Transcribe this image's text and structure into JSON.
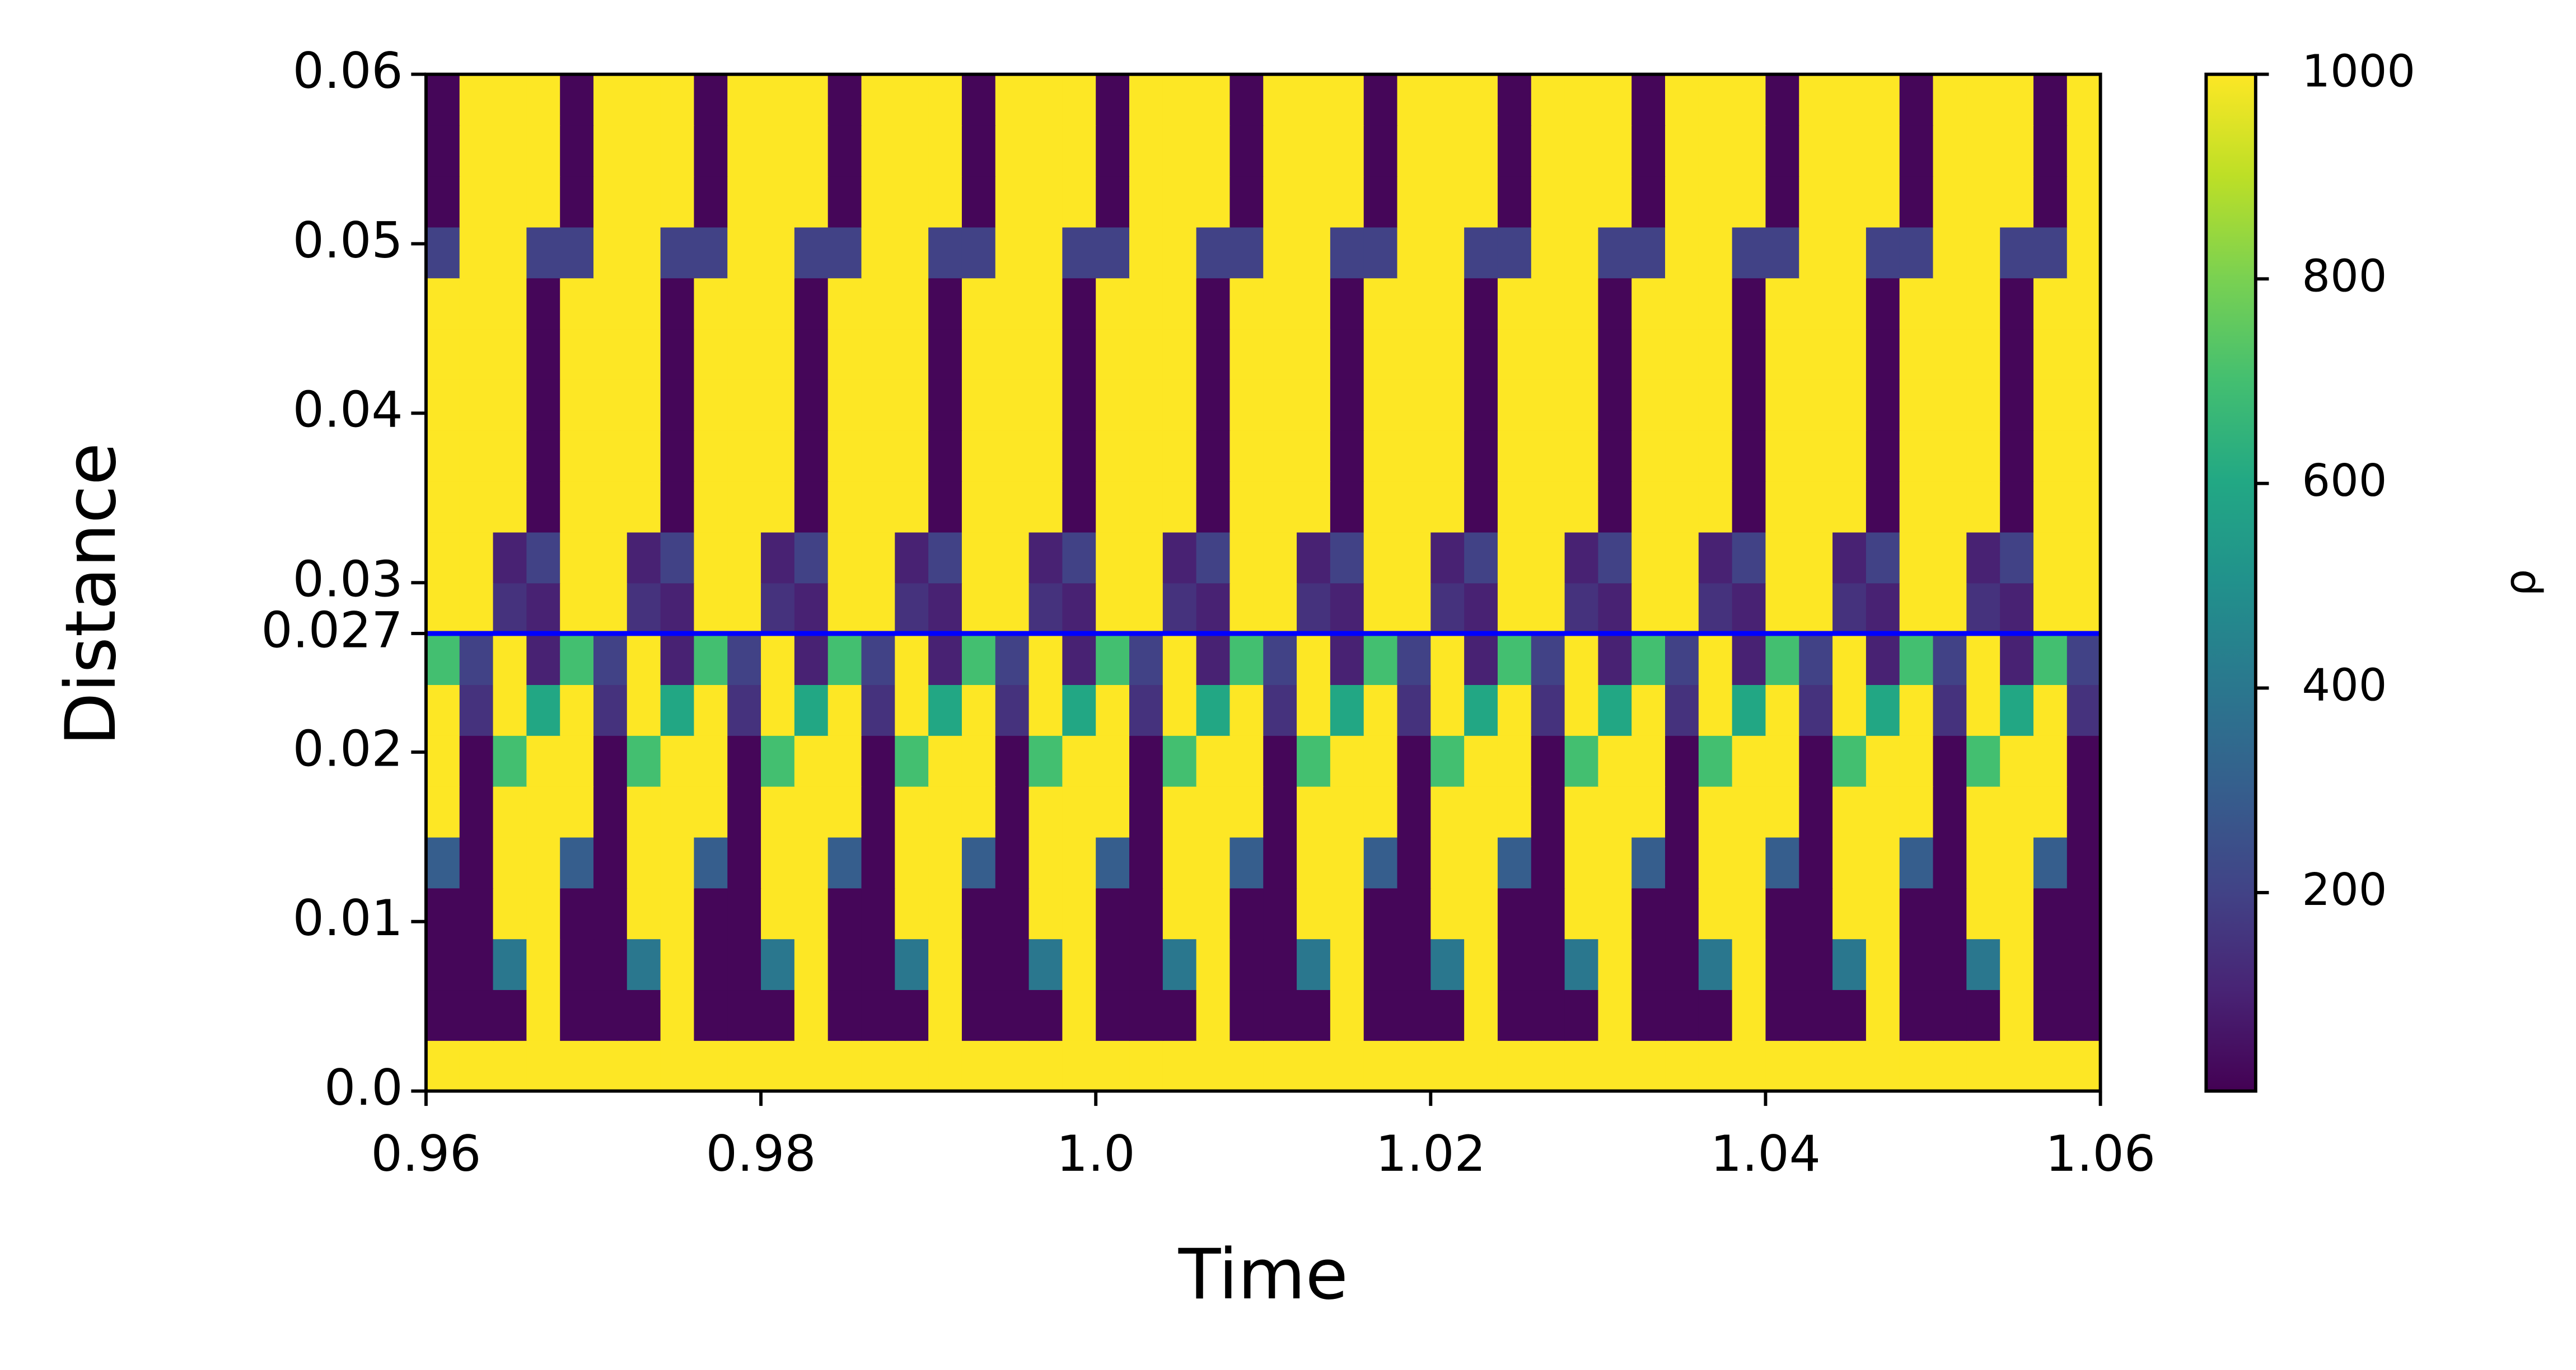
{
  "chart_data": {
    "type": "heatmap",
    "xlabel": "Time",
    "ylabel": "Distance",
    "xlim": [
      0.96,
      1.06
    ],
    "ylim": [
      0,
      0.06
    ],
    "xticks": [
      0.96,
      0.98,
      {
        "value": 1.0,
        "label": "1.0"
      },
      1.02,
      1.04,
      1.06
    ],
    "yticks": [
      {
        "value": 0,
        "label": "0.0"
      },
      0.01,
      0.02,
      0.027,
      0.03,
      0.04,
      0.05,
      0.06
    ],
    "hline": {
      "value": 0.027,
      "color": "#0000ff"
    },
    "colormap": "viridis",
    "colorbar": {
      "label": "ρ",
      "clim": [
        6,
        1000
      ],
      "ticks": [
        200,
        400,
        600,
        800,
        1000
      ]
    },
    "z": [
      [
        1000,
        1000,
        1000,
        1000,
        1000,
        1000,
        1000,
        1000,
        1000,
        1000,
        1000,
        1000,
        1000,
        1000,
        1000,
        1000,
        1000,
        1000,
        1000,
        1000,
        1000,
        1000,
        1000,
        1000,
        1000,
        1000,
        1000,
        1000,
        1000,
        1000,
        1000,
        1000,
        1000,
        1000,
        1000,
        1000,
        1000,
        1000,
        1000,
        1000,
        1000,
        1000,
        1000,
        1000,
        1000,
        1000,
        1000,
        1000,
        1000,
        1000
      ],
      [
        20,
        20,
        20,
        1000,
        20,
        20,
        20,
        1000,
        20,
        20,
        20,
        1000,
        20,
        20,
        20,
        1000,
        20,
        20,
        20,
        1000,
        20,
        20,
        20,
        1000,
        20,
        20,
        20,
        1000,
        20,
        20,
        20,
        1000,
        20,
        20,
        20,
        1000,
        20,
        20,
        20,
        1000,
        20,
        20,
        20,
        1000,
        20,
        20,
        20,
        1000,
        20,
        20
      ],
      [
        20,
        20,
        400,
        1000,
        20,
        20,
        400,
        1000,
        20,
        20,
        400,
        1000,
        20,
        20,
        400,
        1000,
        20,
        20,
        400,
        1000,
        20,
        20,
        400,
        1000,
        20,
        20,
        400,
        1000,
        20,
        20,
        400,
        1000,
        20,
        20,
        400,
        1000,
        20,
        20,
        400,
        1000,
        20,
        20,
        400,
        1000,
        20,
        20,
        400,
        1000,
        20,
        20
      ],
      [
        20,
        20,
        1000,
        1000,
        20,
        20,
        1000,
        1000,
        20,
        20,
        1000,
        1000,
        20,
        20,
        1000,
        1000,
        20,
        20,
        1000,
        1000,
        20,
        20,
        1000,
        1000,
        20,
        20,
        1000,
        1000,
        20,
        20,
        1000,
        1000,
        20,
        20,
        1000,
        1000,
        20,
        20,
        1000,
        1000,
        20,
        20,
        1000,
        1000,
        20,
        20,
        1000,
        1000,
        20,
        20
      ],
      [
        300,
        20,
        1000,
        1000,
        300,
        20,
        1000,
        1000,
        300,
        20,
        1000,
        1000,
        300,
        20,
        1000,
        1000,
        300,
        20,
        1000,
        1000,
        300,
        20,
        1000,
        1000,
        300,
        20,
        1000,
        1000,
        300,
        20,
        1000,
        1000,
        300,
        20,
        1000,
        1000,
        300,
        20,
        1000,
        1000,
        300,
        20,
        1000,
        1000,
        300,
        20,
        1000,
        1000,
        300,
        20
      ],
      [
        1000,
        20,
        1000,
        1000,
        1000,
        20,
        1000,
        1000,
        1000,
        20,
        1000,
        1000,
        1000,
        20,
        1000,
        1000,
        1000,
        20,
        1000,
        1000,
        1000,
        20,
        1000,
        1000,
        1000,
        20,
        1000,
        1000,
        1000,
        20,
        1000,
        1000,
        1000,
        20,
        1000,
        1000,
        1000,
        20,
        1000,
        1000,
        1000,
        20,
        1000,
        1000,
        1000,
        20,
        1000,
        1000,
        1000,
        20
      ],
      [
        1000,
        20,
        700,
        1000,
        1000,
        20,
        700,
        1000,
        1000,
        20,
        700,
        1000,
        1000,
        20,
        700,
        1000,
        1000,
        20,
        700,
        1000,
        1000,
        20,
        700,
        1000,
        1000,
        20,
        700,
        1000,
        1000,
        20,
        700,
        1000,
        1000,
        20,
        700,
        1000,
        1000,
        20,
        700,
        1000,
        1000,
        20,
        700,
        1000,
        1000,
        20,
        700,
        1000,
        1000,
        20
      ],
      [
        1000,
        150,
        1000,
        600,
        1000,
        150,
        1000,
        600,
        1000,
        150,
        1000,
        600,
        1000,
        150,
        1000,
        600,
        1000,
        150,
        1000,
        600,
        1000,
        150,
        1000,
        600,
        1000,
        150,
        1000,
        600,
        1000,
        150,
        1000,
        600,
        1000,
        150,
        1000,
        600,
        1000,
        150,
        1000,
        600,
        1000,
        150,
        1000,
        600,
        1000,
        150,
        1000,
        600,
        1000,
        150
      ],
      [
        700,
        200,
        1000,
        100,
        700,
        200,
        1000,
        100,
        700,
        200,
        1000,
        100,
        700,
        200,
        1000,
        100,
        700,
        200,
        1000,
        100,
        700,
        200,
        1000,
        100,
        700,
        200,
        1000,
        100,
        700,
        200,
        1000,
        100,
        700,
        200,
        1000,
        100,
        700,
        200,
        1000,
        100,
        700,
        200,
        1000,
        100,
        700,
        200,
        1000,
        100,
        700,
        200
      ],
      [
        1000,
        1000,
        150,
        100,
        1000,
        1000,
        150,
        100,
        1000,
        1000,
        150,
        100,
        1000,
        1000,
        150,
        100,
        1000,
        1000,
        150,
        100,
        1000,
        1000,
        150,
        100,
        1000,
        1000,
        150,
        100,
        1000,
        1000,
        150,
        100,
        1000,
        1000,
        150,
        100,
        1000,
        1000,
        150,
        100,
        1000,
        1000,
        150,
        100,
        1000,
        1000,
        150,
        100,
        1000,
        1000
      ],
      [
        1000,
        1000,
        100,
        200,
        1000,
        1000,
        100,
        200,
        1000,
        1000,
        100,
        200,
        1000,
        1000,
        100,
        200,
        1000,
        1000,
        100,
        200,
        1000,
        1000,
        100,
        200,
        1000,
        1000,
        100,
        200,
        1000,
        1000,
        100,
        200,
        1000,
        1000,
        100,
        200,
        1000,
        1000,
        100,
        200,
        1000,
        1000,
        100,
        200,
        1000,
        1000,
        100,
        200,
        1000,
        1000
      ],
      [
        1000,
        1000,
        1000,
        20,
        1000,
        1000,
        1000,
        20,
        1000,
        1000,
        1000,
        20,
        1000,
        1000,
        1000,
        20,
        1000,
        1000,
        1000,
        20,
        1000,
        1000,
        1000,
        20,
        1000,
        1000,
        1000,
        20,
        1000,
        1000,
        1000,
        20,
        1000,
        1000,
        1000,
        20,
        1000,
        1000,
        1000,
        20,
        1000,
        1000,
        1000,
        20,
        1000,
        1000,
        1000,
        20,
        1000,
        1000
      ],
      [
        1000,
        1000,
        1000,
        20,
        1000,
        1000,
        1000,
        20,
        1000,
        1000,
        1000,
        20,
        1000,
        1000,
        1000,
        20,
        1000,
        1000,
        1000,
        20,
        1000,
        1000,
        1000,
        20,
        1000,
        1000,
        1000,
        20,
        1000,
        1000,
        1000,
        20,
        1000,
        1000,
        1000,
        20,
        1000,
        1000,
        1000,
        20,
        1000,
        1000,
        1000,
        20,
        1000,
        1000,
        1000,
        20,
        1000,
        1000
      ],
      [
        1000,
        1000,
        1000,
        20,
        1000,
        1000,
        1000,
        20,
        1000,
        1000,
        1000,
        20,
        1000,
        1000,
        1000,
        20,
        1000,
        1000,
        1000,
        20,
        1000,
        1000,
        1000,
        20,
        1000,
        1000,
        1000,
        20,
        1000,
        1000,
        1000,
        20,
        1000,
        1000,
        1000,
        20,
        1000,
        1000,
        1000,
        20,
        1000,
        1000,
        1000,
        20,
        1000,
        1000,
        1000,
        20,
        1000,
        1000
      ],
      [
        1000,
        1000,
        1000,
        20,
        1000,
        1000,
        1000,
        20,
        1000,
        1000,
        1000,
        20,
        1000,
        1000,
        1000,
        20,
        1000,
        1000,
        1000,
        20,
        1000,
        1000,
        1000,
        20,
        1000,
        1000,
        1000,
        20,
        1000,
        1000,
        1000,
        20,
        1000,
        1000,
        1000,
        20,
        1000,
        1000,
        1000,
        20,
        1000,
        1000,
        1000,
        20,
        1000,
        1000,
        1000,
        20,
        1000,
        1000
      ],
      [
        1000,
        1000,
        1000,
        20,
        1000,
        1000,
        1000,
        20,
        1000,
        1000,
        1000,
        20,
        1000,
        1000,
        1000,
        20,
        1000,
        1000,
        1000,
        20,
        1000,
        1000,
        1000,
        20,
        1000,
        1000,
        1000,
        20,
        1000,
        1000,
        1000,
        20,
        1000,
        1000,
        1000,
        20,
        1000,
        1000,
        1000,
        20,
        1000,
        1000,
        1000,
        20,
        1000,
        1000,
        1000,
        20,
        1000,
        1000
      ],
      [
        200,
        1000,
        1000,
        200,
        200,
        1000,
        1000,
        200,
        200,
        1000,
        1000,
        200,
        200,
        1000,
        1000,
        200,
        200,
        1000,
        1000,
        200,
        200,
        1000,
        1000,
        200,
        200,
        1000,
        1000,
        200,
        200,
        1000,
        1000,
        200,
        200,
        1000,
        1000,
        200,
        200,
        1000,
        1000,
        200,
        200,
        1000,
        1000,
        200,
        200,
        1000,
        1000,
        200,
        200,
        1000
      ],
      [
        20,
        1000,
        1000,
        1000,
        20,
        1000,
        1000,
        1000,
        20,
        1000,
        1000,
        1000,
        20,
        1000,
        1000,
        1000,
        20,
        1000,
        1000,
        1000,
        20,
        1000,
        1000,
        1000,
        20,
        1000,
        1000,
        1000,
        20,
        1000,
        1000,
        1000,
        20,
        1000,
        1000,
        1000,
        20,
        1000,
        1000,
        1000,
        20,
        1000,
        1000,
        1000,
        20,
        1000,
        1000,
        1000,
        20,
        1000
      ],
      [
        20,
        1000,
        1000,
        1000,
        20,
        1000,
        1000,
        1000,
        20,
        1000,
        1000,
        1000,
        20,
        1000,
        1000,
        1000,
        20,
        1000,
        1000,
        1000,
        20,
        1000,
        1000,
        1000,
        20,
        1000,
        1000,
        1000,
        20,
        1000,
        1000,
        1000,
        20,
        1000,
        1000,
        1000,
        20,
        1000,
        1000,
        1000,
        20,
        1000,
        1000,
        1000,
        20,
        1000,
        1000,
        1000,
        20,
        1000
      ],
      [
        20,
        1000,
        1000,
        1000,
        20,
        1000,
        1000,
        1000,
        20,
        1000,
        1000,
        1000,
        20,
        1000,
        1000,
        1000,
        20,
        1000,
        1000,
        1000,
        20,
        1000,
        1000,
        1000,
        20,
        1000,
        1000,
        1000,
        20,
        1000,
        1000,
        1000,
        20,
        1000,
        1000,
        1000,
        20,
        1000,
        1000,
        1000,
        20,
        1000,
        1000,
        1000,
        20,
        1000,
        1000,
        1000,
        20,
        1000
      ]
    ]
  }
}
